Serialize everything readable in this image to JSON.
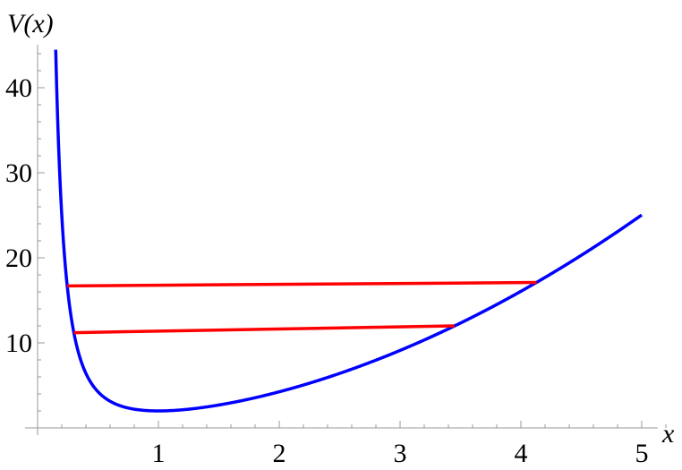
{
  "chart_data": {
    "type": "line",
    "xlabel": "x",
    "ylabel": "V(x)",
    "xlim": [
      0,
      5.2
    ],
    "ylim": [
      0,
      45
    ],
    "grid": false,
    "x_ticks": [
      "1",
      "2",
      "3",
      "4",
      "5"
    ],
    "y_ticks": [
      "10",
      "20",
      "30",
      "40"
    ],
    "curve": {
      "expression": "x^2 + 1/x^2",
      "x_range": [
        0.15,
        5
      ],
      "color": "#0000ff"
    },
    "energy_levels": [
      {
        "x": [
          0.245,
          4.13
        ],
        "y": [
          16.7,
          17.1
        ],
        "color": "#ff0000"
      },
      {
        "x": [
          0.3,
          3.45
        ],
        "y": [
          11.2,
          12.0
        ],
        "color": "#ff0000"
      }
    ]
  }
}
